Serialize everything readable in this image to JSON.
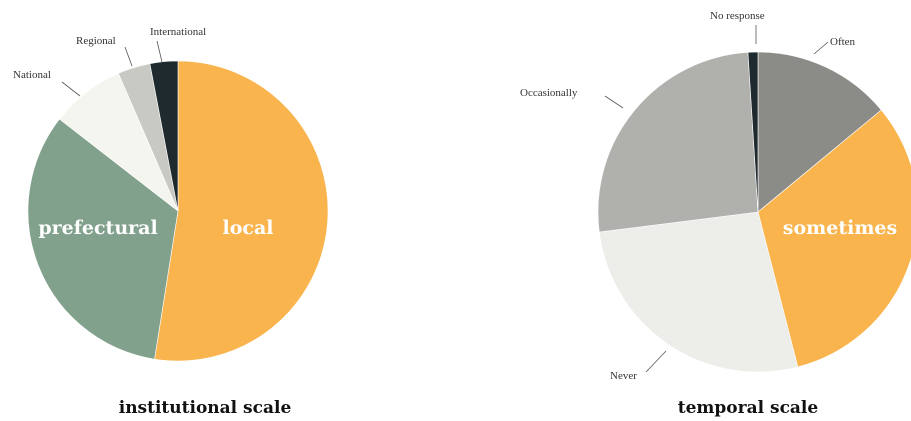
{
  "chart_data": [
    {
      "type": "pie",
      "title": "institutional scale",
      "slices": [
        {
          "label": "local",
          "value": 52.5,
          "color": "#f9b44e",
          "label_style": "inside"
        },
        {
          "label": "prefectural",
          "value": 33.0,
          "color": "#82a18d",
          "label_style": "inside"
        },
        {
          "label": "National",
          "value": 8.0,
          "color": "#f5f5f0",
          "label_style": "outside"
        },
        {
          "label": "Regional",
          "value": 3.5,
          "color": "#c9c9c4",
          "label_style": "outside"
        },
        {
          "label": "International",
          "value": 3.0,
          "color": "#1f2a2e",
          "label_style": "outside"
        }
      ]
    },
    {
      "type": "pie",
      "title": "temporal scale",
      "slices": [
        {
          "label": "Often",
          "value": 14.0,
          "color": "#8b8b88",
          "label_style": "outside"
        },
        {
          "label": "sometimes",
          "value": 32.0,
          "color": "#f9b44e",
          "label_style": "inside"
        },
        {
          "label": "Never",
          "value": 27.0,
          "color": "#ededea",
          "label_style": "outside"
        },
        {
          "label": "Occasionally",
          "value": 26.0,
          "color": "#b0b0ad",
          "label_style": "outside"
        },
        {
          "label": "No response",
          "value": 1.0,
          "color": "#1f2a2e",
          "label_style": "outside"
        }
      ]
    }
  ]
}
